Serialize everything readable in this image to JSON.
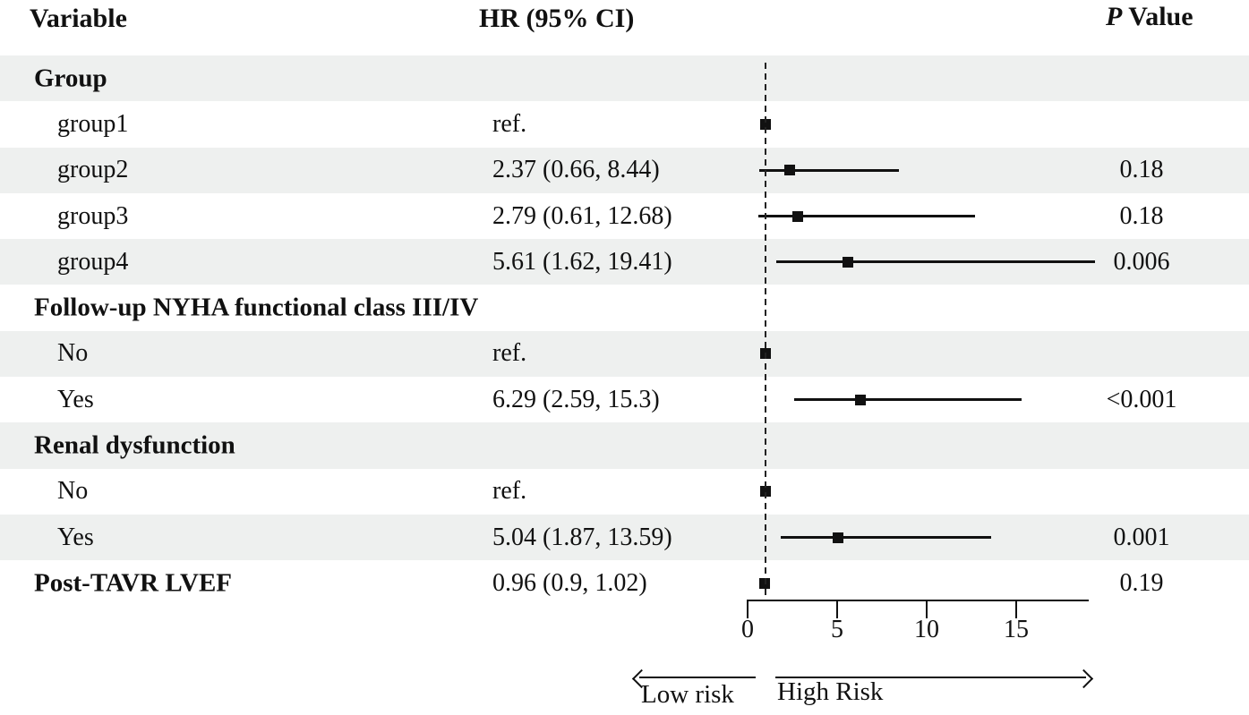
{
  "header": {
    "variable": "Variable",
    "hr": "HR (95% CI)",
    "p_italic": "P",
    "p_rest": " Value"
  },
  "colors": {
    "band": "#eef0ef",
    "ink": "#111111"
  },
  "chart_data": {
    "type": "forest",
    "title": "",
    "xlabel_ticks": [
      "0",
      "5",
      "10",
      "15"
    ],
    "x_axis": {
      "ticks": [
        0,
        5,
        10,
        15
      ],
      "range": [
        0,
        19.05
      ],
      "reference_line": 1
    },
    "direction_labels": {
      "left": "Low risk",
      "right": "High Risk"
    },
    "rows": [
      {
        "label": "Group",
        "bold": true,
        "shaded": true,
        "hr_text": "",
        "p": ""
      },
      {
        "label": "group1",
        "bold": false,
        "shaded": false,
        "hr_text": "ref.",
        "est": 1.0,
        "p": ""
      },
      {
        "label": "group2",
        "bold": false,
        "shaded": true,
        "hr_text": "2.37 (0.66, 8.44)",
        "est": 2.37,
        "lo": 0.66,
        "hi": 8.44,
        "p": "0.18"
      },
      {
        "label": "group3",
        "bold": false,
        "shaded": false,
        "hr_text": "2.79 (0.61, 12.68)",
        "est": 2.79,
        "lo": 0.61,
        "hi": 12.68,
        "p": "0.18"
      },
      {
        "label": "group4",
        "bold": false,
        "shaded": true,
        "hr_text": "5.61 (1.62, 19.41)",
        "est": 5.61,
        "lo": 1.62,
        "hi": 19.41,
        "p": "0.006"
      },
      {
        "label": "Follow-up NYHA functional class III/IV",
        "bold": true,
        "shaded": false,
        "hr_text": "",
        "p": ""
      },
      {
        "label": "No",
        "bold": false,
        "shaded": true,
        "hr_text": "ref.",
        "est": 1.0,
        "p": ""
      },
      {
        "label": "Yes",
        "bold": false,
        "shaded": false,
        "hr_text": "6.29 (2.59, 15.3)",
        "est": 6.29,
        "lo": 2.59,
        "hi": 15.3,
        "p": "<0.001"
      },
      {
        "label": "Renal dysfunction",
        "bold": true,
        "shaded": true,
        "hr_text": "",
        "p": ""
      },
      {
        "label": "No",
        "bold": false,
        "shaded": false,
        "hr_text": "ref.",
        "est": 1.0,
        "p": ""
      },
      {
        "label": "Yes",
        "bold": false,
        "shaded": true,
        "hr_text": "5.04 (1.87, 13.59)",
        "est": 5.04,
        "lo": 1.87,
        "hi": 13.59,
        "p": "0.001"
      },
      {
        "label": "Post-TAVR LVEF",
        "bold": true,
        "shaded": false,
        "hr_text": "0.96 (0.9, 1.02)",
        "est": 0.96,
        "lo": 0.9,
        "hi": 1.02,
        "p": "0.19"
      }
    ]
  }
}
